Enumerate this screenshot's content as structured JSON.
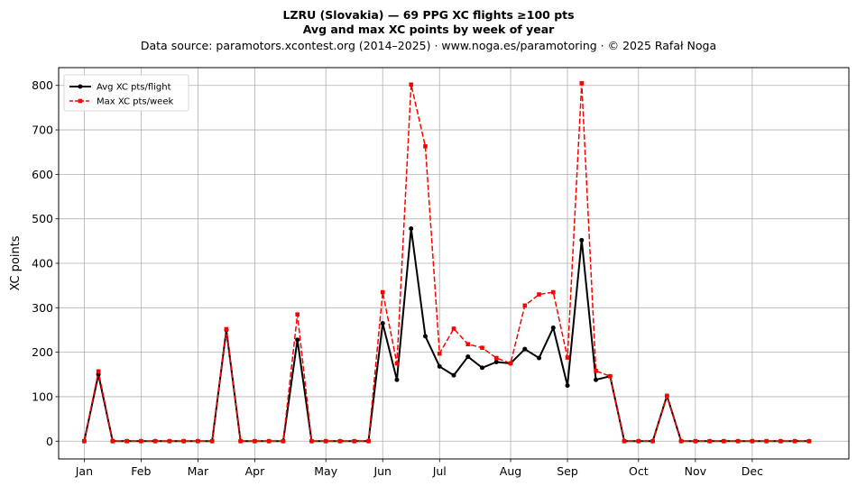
{
  "chart_data": {
    "type": "line",
    "title": "LZRU (Slovakia)  —  69 PPG XC flights ≥100 pts",
    "subtitle": "Avg and max XC points by week of year",
    "source": "Data source: paramotors.xcontest.org (2014–2025)  ·  www.noga.es/paramotoring  ·  © 2025 Rafał Noga",
    "xlabel": "",
    "ylabel": "XC points",
    "ylim": [
      -40,
      840
    ],
    "xlim": [
      -1.8,
      53.8
    ],
    "grid": true,
    "legend_position": "top-left",
    "yticks": [
      0,
      100,
      200,
      300,
      400,
      500,
      600,
      700,
      800
    ],
    "xticks": [
      {
        "x": 0,
        "label": "Jan"
      },
      {
        "x": 4,
        "label": "Feb"
      },
      {
        "x": 8,
        "label": "Mar"
      },
      {
        "x": 12,
        "label": "Apr"
      },
      {
        "x": 17,
        "label": "May"
      },
      {
        "x": 21,
        "label": "Jun"
      },
      {
        "x": 25,
        "label": "Jul"
      },
      {
        "x": 30,
        "label": "Aug"
      },
      {
        "x": 34,
        "label": "Sep"
      },
      {
        "x": 39,
        "label": "Oct"
      },
      {
        "x": 43,
        "label": "Nov"
      },
      {
        "x": 47,
        "label": "Dec"
      }
    ],
    "x": [
      0,
      1,
      2,
      3,
      4,
      5,
      6,
      7,
      8,
      9,
      10,
      11,
      12,
      13,
      14,
      15,
      16,
      17,
      18,
      19,
      20,
      21,
      22,
      23,
      24,
      25,
      26,
      27,
      28,
      29,
      30,
      31,
      32,
      33,
      34,
      35,
      36,
      37,
      38,
      39,
      40,
      41,
      42,
      43,
      44,
      45,
      46,
      47,
      48,
      49,
      50,
      51
    ],
    "series": [
      {
        "name": "Avg XC pts/flight",
        "color": "#000000",
        "style": "solid",
        "marker": "circle",
        "values": [
          0,
          150,
          0,
          0,
          0,
          0,
          0,
          0,
          0,
          0,
          250,
          0,
          0,
          0,
          0,
          228,
          0,
          0,
          0,
          0,
          0,
          265,
          138,
          478,
          236,
          168,
          148,
          190,
          165,
          178,
          175,
          207,
          187,
          255,
          125,
          452,
          138,
          146,
          0,
          0,
          0,
          102,
          0,
          0,
          0,
          0,
          0,
          0,
          0,
          0,
          0,
          0
        ]
      },
      {
        "name": "Max XC pts/week",
        "color": "#ff0000",
        "style": "dashed",
        "marker": "square",
        "values": [
          0,
          157,
          0,
          0,
          0,
          0,
          0,
          0,
          0,
          0,
          252,
          0,
          0,
          0,
          0,
          285,
          0,
          0,
          0,
          0,
          0,
          335,
          175,
          802,
          663,
          197,
          253,
          218,
          210,
          187,
          175,
          305,
          330,
          335,
          188,
          805,
          158,
          146,
          0,
          0,
          0,
          102,
          0,
          0,
          0,
          0,
          0,
          0,
          0,
          0,
          0,
          0
        ]
      }
    ]
  }
}
